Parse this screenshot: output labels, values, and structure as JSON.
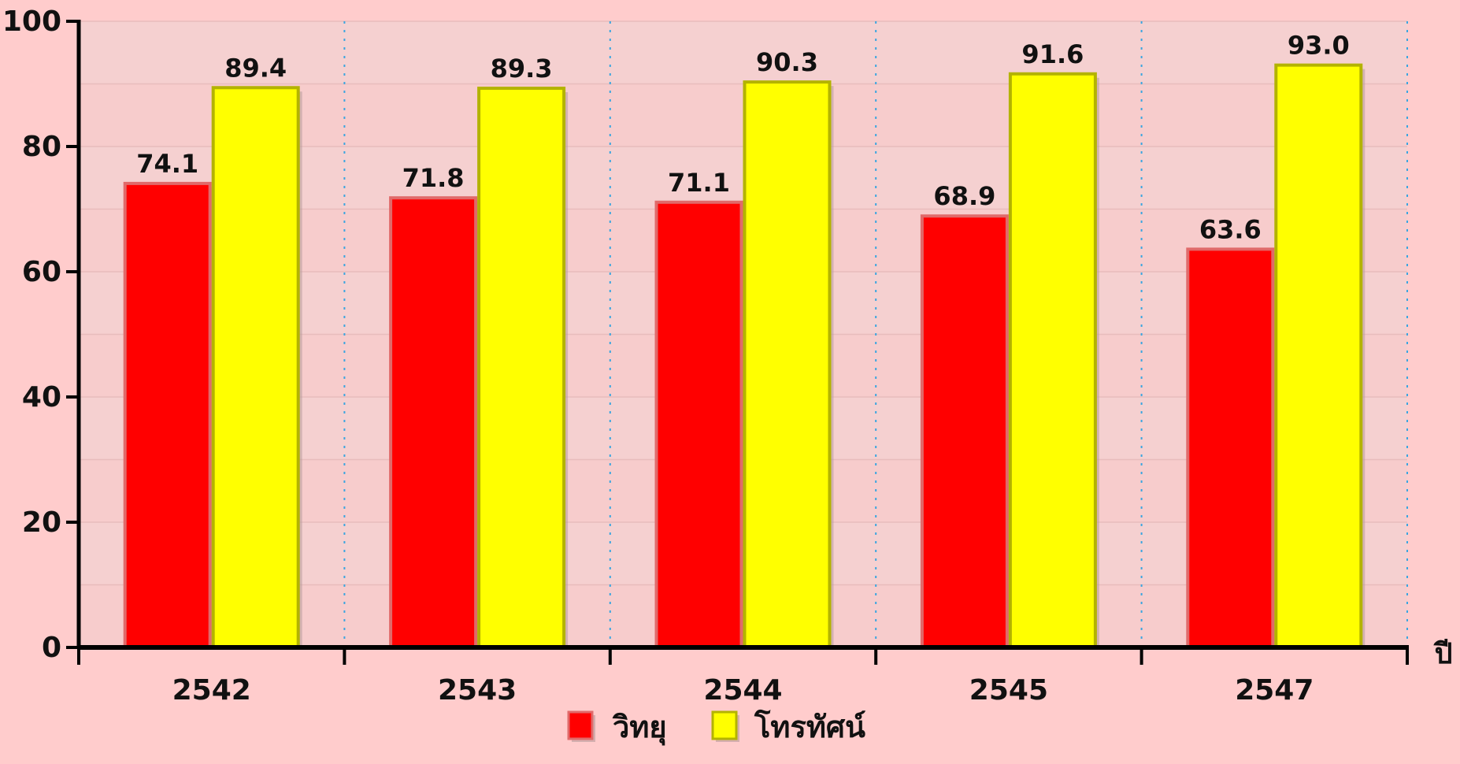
{
  "chart_data": {
    "type": "bar",
    "categories": [
      "2542",
      "2543",
      "2544",
      "2545",
      "2547"
    ],
    "series": [
      {
        "name": "วิทยุ",
        "values": [
          74.1,
          71.8,
          71.1,
          68.9,
          63.6
        ],
        "color": "#ff0000",
        "border": "#e06a6a"
      },
      {
        "name": "โทรทัศน์",
        "values": [
          89.4,
          89.3,
          90.3,
          91.6,
          93.0
        ],
        "color": "#ffff00",
        "border": "#b3b300"
      }
    ],
    "data_labels": [
      [
        "74.1",
        "71.8",
        "71.1",
        "68.9",
        "63.6"
      ],
      [
        "89.4",
        "89.3",
        "90.3",
        "91.6",
        "93.0"
      ]
    ],
    "yticks": [
      "0",
      "20",
      "40",
      "60",
      "80",
      "100"
    ],
    "ylim": [
      0,
      100
    ],
    "xlabel": "ปี",
    "ylabel": "",
    "title": "",
    "legend_position": "bottom-center",
    "grid": true,
    "background": "#ffcccc"
  }
}
